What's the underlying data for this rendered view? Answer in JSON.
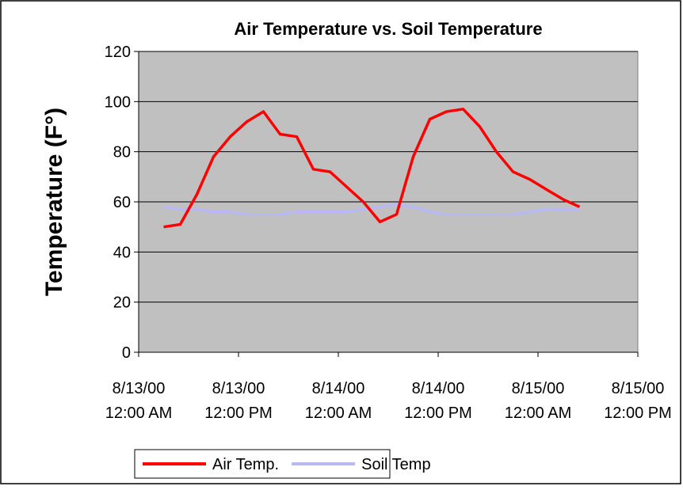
{
  "chart_data": {
    "type": "line",
    "title": "Air Temperature vs. Soil Temperature",
    "y_label": "Temperature (F°)",
    "x": [
      "8/13/00 3:00 AM",
      "8/13/00 5:00 AM",
      "8/13/00 7:00 AM",
      "8/13/00 9:00 AM",
      "8/13/00 11:00 AM",
      "8/13/00 1:00 PM",
      "8/13/00 3:00 PM",
      "8/13/00 5:00 PM",
      "8/13/00 7:00 PM",
      "8/13/00 9:00 PM",
      "8/13/00 11:00 PM",
      "8/14/00 1:00 AM",
      "8/14/00 3:00 AM",
      "8/14/00 5:00 AM",
      "8/14/00 7:00 AM",
      "8/14/00 9:00 AM",
      "8/14/00 11:00 AM",
      "8/14/00 1:00 PM",
      "8/14/00 3:00 PM",
      "8/14/00 5:00 PM",
      "8/14/00 7:00 PM",
      "8/14/00 9:00 PM",
      "8/14/00 11:00 PM",
      "8/15/00 1:00 AM",
      "8/15/00 3:00 AM",
      "8/15/00 5:00 AM"
    ],
    "series": [
      {
        "name": "Air Temp.",
        "color": "#ff0000",
        "values": [
          50,
          51,
          63,
          78,
          86,
          92,
          96,
          87,
          86,
          73,
          72,
          66,
          60,
          52,
          55,
          78,
          93,
          96,
          97,
          90,
          80,
          72,
          69,
          65,
          61,
          58
        ]
      },
      {
        "name": "Soil Temp",
        "color": "#b8b8f5",
        "values": [
          58,
          57,
          57,
          56,
          56,
          55,
          55,
          55,
          56,
          56,
          56,
          56,
          57,
          58,
          59,
          58,
          56,
          55,
          55,
          55,
          55,
          55,
          56,
          57,
          57,
          57
        ]
      }
    ],
    "xlim": [
      "8/13/00 12:00 AM",
      "8/15/00 12:00 PM"
    ],
    "xticks": [
      "8/13/00 12:00 AM",
      "8/13/00 12:00 PM",
      "8/14/00 12:00 AM",
      "8/14/00 12:00 PM",
      "8/15/00 12:00 AM",
      "8/15/00 12:00 PM"
    ],
    "ylim": [
      0,
      120
    ],
    "yticks": [
      0,
      20,
      40,
      60,
      80,
      100,
      120
    ],
    "grid": true,
    "legend": "bottom",
    "plot_background": "#c0c0c0"
  }
}
